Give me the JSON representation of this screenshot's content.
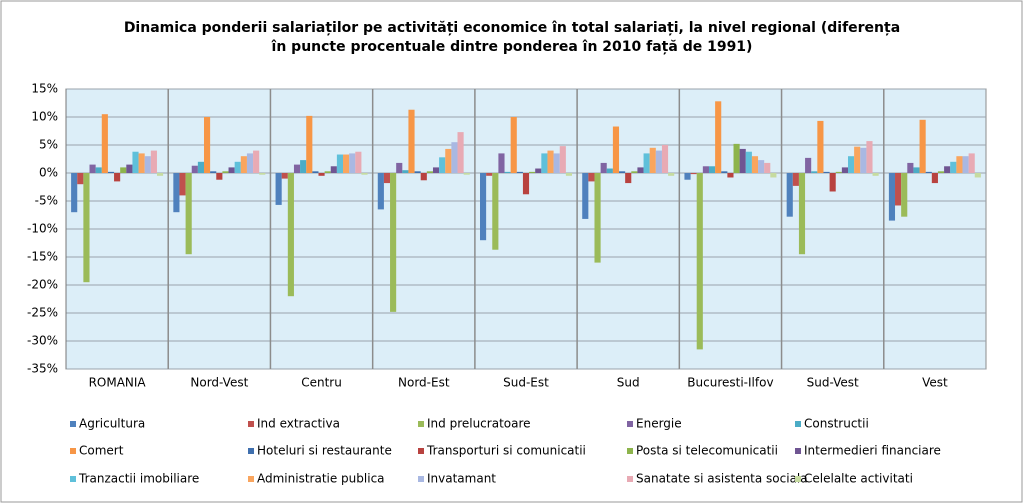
{
  "chart_data": {
    "type": "bar",
    "title": [
      "Dinamica ponderii salariaților pe activități economice în total salariați, la nivel regional (diferența",
      "în puncte procentuale dintre ponderea în 2010 față de 1991)"
    ],
    "categories": [
      "ROMANIA",
      "Nord-Vest",
      "Centru",
      "Nord-Est",
      "Sud-Est",
      "Sud",
      "Bucuresti-Ilfov",
      "Sud-Vest",
      "Vest"
    ],
    "ylim": [
      -35,
      15
    ],
    "yticks": [
      {
        "value": -35,
        "label": "-35%"
      },
      {
        "value": -30,
        "label": "-30%"
      },
      {
        "value": -25,
        "label": "-25%"
      },
      {
        "value": -20,
        "label": "-20%"
      },
      {
        "value": -15,
        "label": "-15%"
      },
      {
        "value": -10,
        "label": "-10%"
      },
      {
        "value": -5,
        "label": "-5%"
      },
      {
        "value": 0,
        "label": "0%"
      },
      {
        "value": 5,
        "label": "5%"
      },
      {
        "value": 10,
        "label": "10%"
      },
      {
        "value": 15,
        "label": "15%"
      }
    ],
    "grid": true,
    "series": [
      {
        "name": "Agricultura",
        "color": "#4F81BD",
        "values": [
          -7,
          -7,
          -5.7,
          -6.5,
          -12,
          -8.2,
          -1.2,
          -7.8,
          -8.5
        ]
      },
      {
        "name": "Ind extractiva",
        "color": "#C0504D",
        "values": [
          -2,
          -4,
          -1,
          -1.8,
          -0.5,
          -1.5,
          -0.2,
          -2.3,
          -5.8
        ]
      },
      {
        "name": "Ind prelucratoare",
        "color": "#9BBB59",
        "values": [
          -19.5,
          -14.5,
          -22,
          -24.8,
          -13.7,
          -16,
          -31.5,
          -14.5,
          -7.8
        ]
      },
      {
        "name": "Energie",
        "color": "#8064A2",
        "values": [
          1.5,
          1.3,
          1.5,
          1.8,
          3.5,
          1.8,
          1.2,
          2.7,
          1.8
        ]
      },
      {
        "name": "Constructii",
        "color": "#4BACC6",
        "values": [
          1,
          2,
          2.3,
          0.5,
          0.2,
          0.8,
          1.2,
          0.3,
          1
        ]
      },
      {
        "name": "Comert",
        "color": "#F79646",
        "values": [
          10.5,
          10,
          10.2,
          11.3,
          10,
          8.3,
          12.8,
          9.3,
          9.5
        ]
      },
      {
        "name": "Hoteluri si restaurante",
        "color": "#3F6FAE",
        "values": [
          0.2,
          0.3,
          0.3,
          0.3,
          0.2,
          0.3,
          0.3,
          0.2,
          0.2
        ]
      },
      {
        "name": "Transporturi si comunicatii",
        "color": "#B8423F",
        "values": [
          -1.5,
          -1.2,
          -0.5,
          -1.3,
          -3.8,
          -1.8,
          -0.8,
          -3.3,
          -1.8
        ]
      },
      {
        "name": "Posta si telecomunicatii",
        "color": "#8DB44C",
        "values": [
          1,
          0.3,
          0.3,
          0.3,
          0.2,
          0.3,
          5.2,
          0.2,
          0.3
        ]
      },
      {
        "name": "Intermedieri financiare",
        "color": "#6F5592",
        "values": [
          1.5,
          1,
          1.2,
          1,
          0.8,
          1,
          4.3,
          1,
          1.2
        ]
      },
      {
        "name": "Tranzactii imobiliare",
        "color": "#5FC0DA",
        "values": [
          3.8,
          2,
          3.3,
          2.8,
          3.5,
          3.5,
          3.8,
          3,
          2
        ]
      },
      {
        "name": "Administratie publica",
        "color": "#F9A55E",
        "values": [
          3.5,
          3,
          3.3,
          4.3,
          4,
          4.5,
          3,
          4.7,
          3
        ]
      },
      {
        "name": "Invatamant",
        "color": "#A9B8E2",
        "values": [
          3,
          3.5,
          3.5,
          5.5,
          3.5,
          4,
          2.3,
          4.5,
          3
        ]
      },
      {
        "name": "Sanatate si asistenta sociala",
        "color": "#E8AAB4",
        "values": [
          4,
          4,
          3.8,
          7.3,
          4.8,
          5,
          1.8,
          5.7,
          3.5
        ]
      },
      {
        "name": "Celelalte activitati",
        "color": "#C6DBA0",
        "values": [
          -0.5,
          -0.3,
          -0.3,
          -0.3,
          -0.5,
          -0.5,
          -0.8,
          -0.5,
          -0.8
        ]
      }
    ]
  }
}
